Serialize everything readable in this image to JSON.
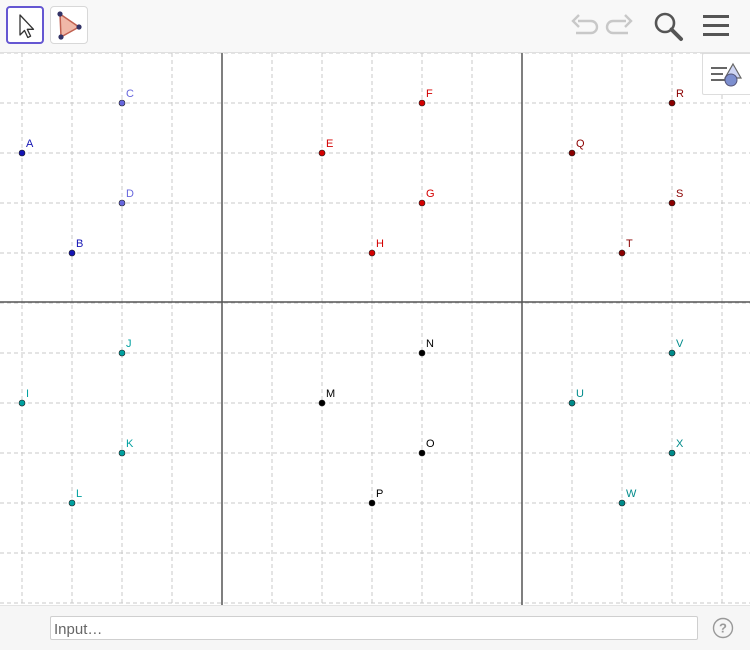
{
  "toolbar": {
    "tools": [
      {
        "name": "move-tool",
        "icon": "arrow-pointer-icon",
        "selected": true
      },
      {
        "name": "polygon-tool",
        "icon": "triangle-polygon-icon",
        "selected": false
      }
    ],
    "right": [
      "undo-icon",
      "redo-icon",
      "search-icon",
      "menu-icon"
    ]
  },
  "graphics": {
    "style_bar_icon": "style-bar-toggle-icon",
    "points": [
      {
        "label": "A",
        "color": "#1414b4"
      },
      {
        "label": "B",
        "color": "#1414b4"
      },
      {
        "label": "C",
        "color": "#6666dd"
      },
      {
        "label": "D",
        "color": "#6666dd"
      },
      {
        "label": "E",
        "color": "#d40000"
      },
      {
        "label": "F",
        "color": "#d40000"
      },
      {
        "label": "G",
        "color": "#d40000"
      },
      {
        "label": "H",
        "color": "#d40000"
      },
      {
        "label": "Q",
        "color": "#8b0000"
      },
      {
        "label": "R",
        "color": "#8b0000"
      },
      {
        "label": "S",
        "color": "#8b0000"
      },
      {
        "label": "T",
        "color": "#8b0000"
      },
      {
        "label": "I",
        "color": "#00a0a0"
      },
      {
        "label": "J",
        "color": "#00a0a0"
      },
      {
        "label": "K",
        "color": "#00a0a0"
      },
      {
        "label": "L",
        "color": "#00a0a0"
      },
      {
        "label": "M",
        "color": "#000000"
      },
      {
        "label": "N",
        "color": "#000000"
      },
      {
        "label": "O",
        "color": "#000000"
      },
      {
        "label": "P",
        "color": "#000000"
      },
      {
        "label": "U",
        "color": "#008b8b"
      },
      {
        "label": "V",
        "color": "#008b8b"
      },
      {
        "label": "W",
        "color": "#008b8b"
      },
      {
        "label": "X",
        "color": "#008b8b"
      }
    ]
  },
  "inputbar": {
    "placeholder": "Input…",
    "help_icon": "help-icon",
    "help_glyph": "?"
  }
}
